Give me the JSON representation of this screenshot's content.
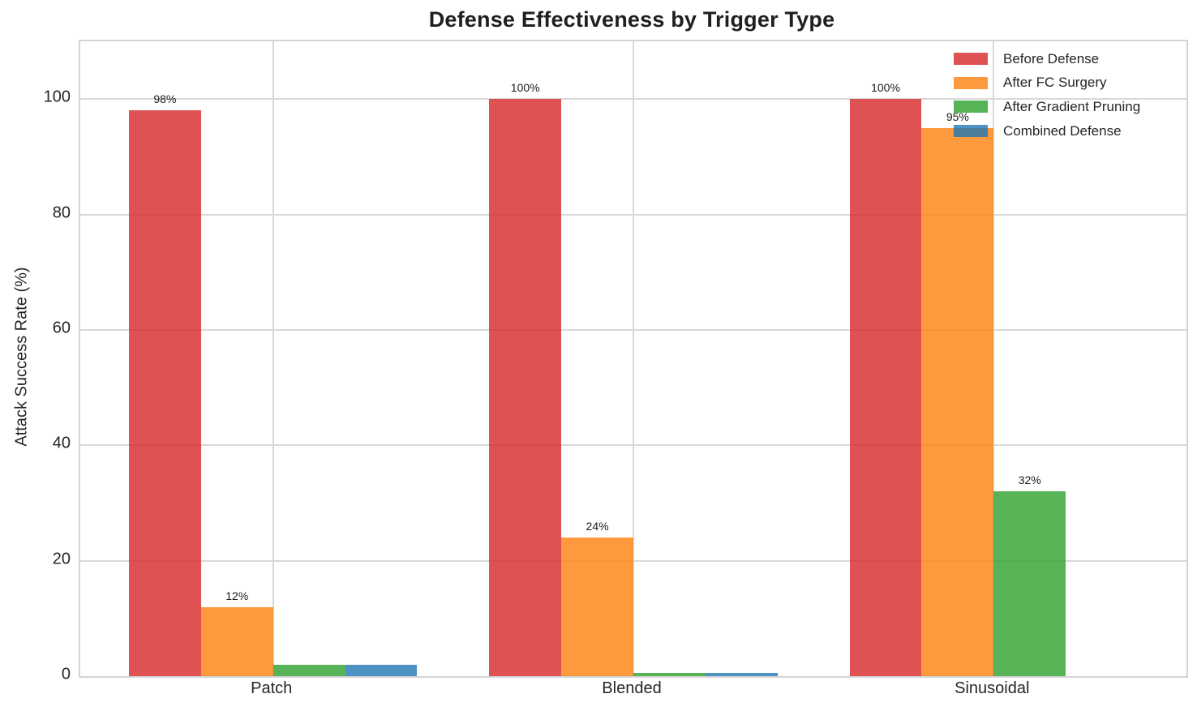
{
  "figure": {
    "title": "Defense Effectiveness by Trigger Type"
  },
  "chart_data": {
    "type": "bar",
    "title": "Defense Effectiveness by Trigger Type",
    "xlabel": "",
    "ylabel": "Attack Success Rate (%)",
    "categories": [
      "Patch",
      "Blended",
      "Sinusoidal"
    ],
    "series": [
      {
        "name": "Before Defense",
        "color": "#d62728",
        "values": [
          98,
          100,
          100
        ],
        "bar_labels": [
          "98%",
          "100%",
          "100%"
        ]
      },
      {
        "name": "After FC Surgery",
        "color": "#ff7f0e",
        "values": [
          12,
          24,
          95
        ],
        "bar_labels": [
          "12%",
          "24%",
          "95%"
        ]
      },
      {
        "name": "After Gradient Pruning",
        "color": "#2ca02c",
        "values": [
          2,
          0.5,
          32
        ],
        "bar_labels": [
          "",
          "",
          "32%"
        ]
      },
      {
        "name": "Combined Defense",
        "color": "#1f77b4",
        "values": [
          2,
          0.5,
          0
        ],
        "bar_labels": [
          "",
          "",
          ""
        ]
      }
    ],
    "bar_alpha": 0.8,
    "ylim": [
      0,
      110
    ],
    "yticks": [
      0,
      20,
      40,
      60,
      80,
      100
    ],
    "grid": true,
    "legend_position": "upper right",
    "styles": {
      "grid_color": "#d9d9d9",
      "spine_color": "#d4d4d4",
      "tick_text_color": "#262626",
      "bar_label_color": "#1a1a1a"
    }
  }
}
